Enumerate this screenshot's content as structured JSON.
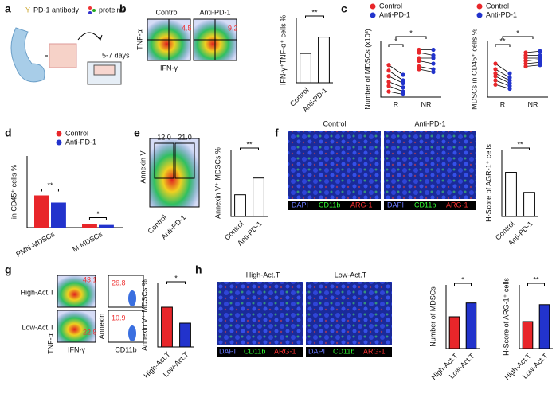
{
  "panels": {
    "a": {
      "letter": "a",
      "antibody": "PD-1 antibody",
      "proteins": "proteins",
      "days": "5-7 days"
    },
    "b": {
      "letter": "b",
      "control": "Control",
      "anti": "Anti-PD-1",
      "y": "TNF-α",
      "x": "IFN-γ",
      "q1": "4.5",
      "q2": "9.2"
    },
    "c": {
      "letter": "c"
    },
    "d": {
      "letter": "d"
    },
    "e": {
      "letter": "e",
      "q1": "12.0",
      "q2": "21.0",
      "y": "Annexin V",
      "x1": "Control",
      "x2": "Anti-PD-1"
    },
    "f": {
      "letter": "f",
      "control": "Control",
      "anti": "Anti-PD-1",
      "stain": [
        "DAPI",
        "CD11b",
        "ARG-1"
      ]
    },
    "g": {
      "letter": "g",
      "high": "High-Act.T",
      "low": "Low-Act.T",
      "y1": "TNF-α",
      "x1": "IFN-γ",
      "y2": "Annexin",
      "x2": "CD11b",
      "q1": "43.1",
      "q2": "22.9",
      "q3": "26.8",
      "q4": "10.9"
    },
    "h": {
      "letter": "h",
      "high": "High-Act.T",
      "low": "Low-Act.T",
      "stain": [
        "DAPI",
        "CD11b",
        "ARG-1"
      ]
    }
  },
  "chart_data": [
    {
      "type": "bar",
      "ylabel": "IFN-γ⁺TNF-α⁺ cells %",
      "categories": [
        "Control",
        "Anti-PD-1"
      ],
      "values": [
        18,
        28
      ],
      "colors": [
        "#ffffff",
        "#ffffff"
      ],
      "ylim": [
        0,
        40
      ],
      "significance": "**"
    },
    {
      "type": "paired",
      "ylabel": "Number of MDSCs (x10³)",
      "categories": [
        "R",
        "NR"
      ],
      "series": [
        {
          "name": "Control",
          "color": "#e8262a",
          "values": [
            [
              11.5,
              9.5,
              7.5,
              5.5,
              4,
              2
            ],
            [
              17,
              16,
              14,
              13,
              11,
              10
            ]
          ]
        },
        {
          "name": "Anti-PD-1",
          "color": "#2233cc",
          "values": [
            [
              8,
              6,
              5,
              3.5,
              2,
              1
            ],
            [
              17,
              15,
              14,
              12,
              10,
              9
            ]
          ]
        }
      ],
      "ylim": [
        0,
        20
      ],
      "significance": [
        "*",
        "*"
      ]
    },
    {
      "type": "paired",
      "ylabel": "MDSCs in CD45⁺ cells %",
      "categories": [
        "R",
        "NR"
      ],
      "series": [
        {
          "name": "Control",
          "color": "#e8262a",
          "values": [
            [
              24,
              20,
              17,
              15,
              12,
              9
            ],
            [
              32,
              30,
              28,
              26,
              24,
              22
            ]
          ]
        },
        {
          "name": "Anti-PD-1",
          "color": "#2233cc",
          "values": [
            [
              17,
              14,
              12,
              10,
              8,
              6
            ],
            [
              33,
              30,
              28,
              27,
              25,
              23
            ]
          ]
        }
      ],
      "ylim": [
        0,
        40
      ],
      "significance": [
        "**",
        "*"
      ]
    },
    {
      "type": "grouped_bar",
      "ylabel": "in CD45⁺ cells %",
      "categories": [
        "PMN-MDSCs",
        "M-MDSCs"
      ],
      "series": [
        {
          "name": "Control",
          "color": "#e8262a",
          "values": [
            18,
            2
          ]
        },
        {
          "name": "Anti-PD-1",
          "color": "#2233cc",
          "values": [
            14,
            1.5
          ]
        }
      ],
      "ylim": [
        0,
        40
      ],
      "significance": [
        "**",
        "*"
      ]
    },
    {
      "type": "bar",
      "ylabel": "Annexin V⁺ MDSCs %",
      "categories": [
        "Control",
        "Anti-PD-1"
      ],
      "values": [
        13,
        23
      ],
      "colors": [
        "#ffffff",
        "#ffffff"
      ],
      "ylim": [
        0,
        40
      ],
      "significance": "**"
    },
    {
      "type": "bar",
      "ylabel": "H-Score of AGR-1⁺ cells",
      "categories": [
        "Control",
        "Anti-PD-1"
      ],
      "values": [
        165,
        90
      ],
      "colors": [
        "#ffffff",
        "#ffffff"
      ],
      "ylim": [
        0,
        250
      ],
      "significance": "**"
    },
    {
      "type": "bar",
      "ylabel": "Annexin V⁺ MDSCs %",
      "categories": [
        "High-Act.T",
        "Low-Act.T"
      ],
      "values": [
        25,
        15
      ],
      "colors": [
        "#e8262a",
        "#2233cc"
      ],
      "ylim": [
        0,
        40
      ],
      "significance": "*"
    },
    {
      "type": "bar",
      "ylabel": "Number of MDSCs",
      "categories": [
        "High-Act.T",
        "Low-Act.T"
      ],
      "values": [
        30,
        43
      ],
      "colors": [
        "#e8262a",
        "#2233cc"
      ],
      "ylim": [
        0,
        60
      ],
      "significance": "*"
    },
    {
      "type": "bar",
      "ylabel": "H-Score of ARG-1⁺ cells",
      "categories": [
        "High-Act.T",
        "Low-Act.T"
      ],
      "values": [
        85,
        138
      ],
      "colors": [
        "#e8262a",
        "#2233cc"
      ],
      "ylim": [
        0,
        200
      ],
      "significance": "**"
    }
  ]
}
